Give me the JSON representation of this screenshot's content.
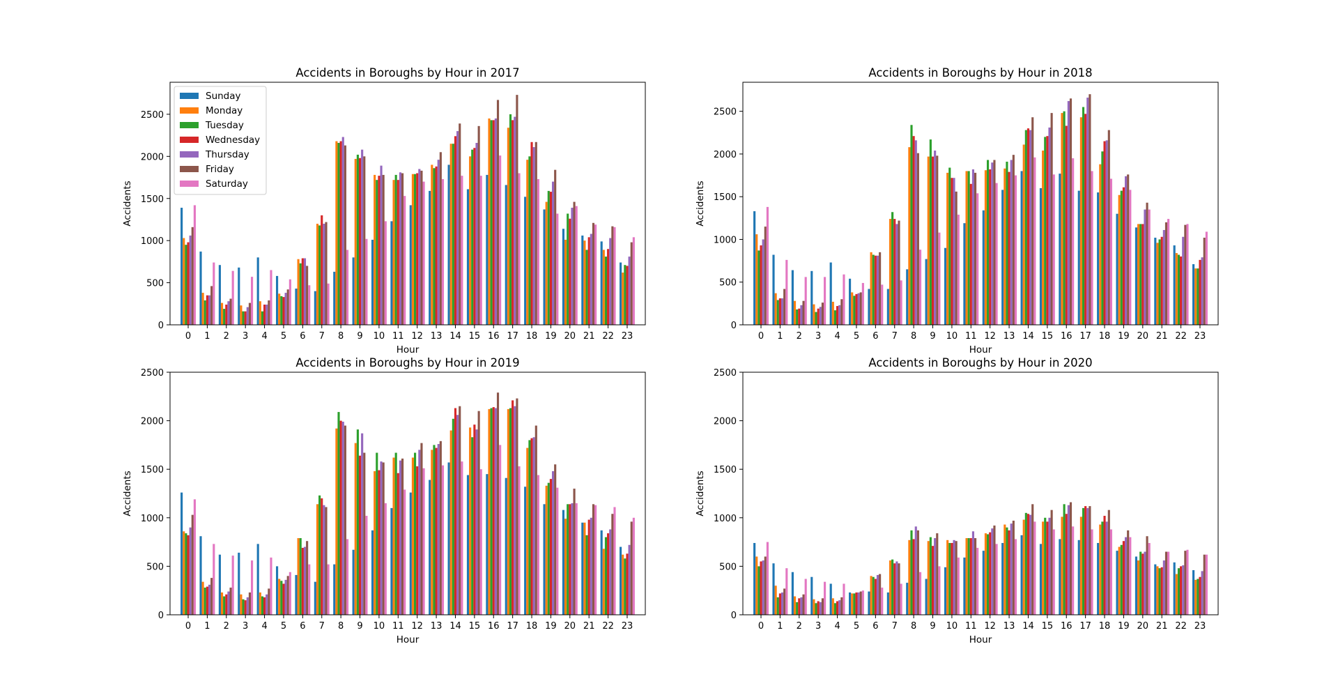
{
  "colors": {
    "Sunday": "#1f77b4",
    "Monday": "#ff7f0e",
    "Tuesday": "#2ca02c",
    "Wednesday": "#d62728",
    "Thursday": "#9467bd",
    "Friday": "#8c564b",
    "Saturday": "#e377c2"
  },
  "legend_location": "upper left of first chart",
  "chart_data": [
    {
      "type": "bar",
      "title": "Accidents in Boroughs by Hour in 2017",
      "xlabel": "Hour",
      "ylabel": "Accidents",
      "ylim": [
        0,
        2880
      ],
      "yticks": [
        0,
        500,
        1000,
        1500,
        2000,
        2500
      ],
      "categories": [
        "0",
        "1",
        "2",
        "3",
        "4",
        "5",
        "6",
        "7",
        "8",
        "9",
        "10",
        "11",
        "12",
        "13",
        "14",
        "15",
        "16",
        "17",
        "18",
        "19",
        "20",
        "21",
        "22",
        "23"
      ],
      "legend": true,
      "series": [
        {
          "name": "Sunday",
          "values": [
            1390,
            870,
            710,
            680,
            800,
            580,
            430,
            400,
            630,
            800,
            1010,
            1230,
            1420,
            1590,
            1900,
            1610,
            1780,
            1660,
            1520,
            1370,
            1140,
            1060,
            990,
            740
          ]
        },
        {
          "name": "Monday",
          "values": [
            1030,
            380,
            260,
            230,
            280,
            370,
            780,
            1200,
            2180,
            1970,
            1780,
            1720,
            1790,
            1900,
            2150,
            2000,
            2450,
            2340,
            1960,
            1460,
            1010,
            1000,
            890,
            620
          ]
        },
        {
          "name": "Tuesday",
          "values": [
            950,
            290,
            190,
            160,
            160,
            340,
            730,
            1180,
            2160,
            2020,
            1720,
            1780,
            1790,
            1860,
            2150,
            2080,
            2430,
            2500,
            2000,
            1590,
            1320,
            890,
            810,
            710
          ]
        },
        {
          "name": "Wednesday",
          "values": [
            980,
            350,
            240,
            160,
            240,
            330,
            790,
            1300,
            2180,
            1980,
            1770,
            1720,
            1800,
            1880,
            2240,
            2100,
            2430,
            2430,
            2170,
            1580,
            1260,
            1040,
            900,
            700
          ]
        },
        {
          "name": "Thursday",
          "values": [
            1060,
            350,
            280,
            210,
            240,
            380,
            790,
            1200,
            2230,
            2080,
            1890,
            1810,
            1850,
            1960,
            2300,
            2160,
            2450,
            2470,
            2110,
            1700,
            1390,
            1080,
            1030,
            810
          ]
        },
        {
          "name": "Friday",
          "values": [
            1160,
            460,
            310,
            260,
            290,
            420,
            700,
            1220,
            2130,
            2000,
            1780,
            1800,
            1830,
            2050,
            2390,
            2360,
            2670,
            2730,
            2170,
            1840,
            1460,
            1210,
            1170,
            980
          ]
        },
        {
          "name": "Saturday",
          "values": [
            1420,
            740,
            640,
            570,
            650,
            540,
            470,
            490,
            890,
            1020,
            1230,
            1530,
            1700,
            1730,
            1770,
            1770,
            2010,
            1800,
            1730,
            1320,
            1410,
            1190,
            1160,
            1040
          ]
        }
      ]
    },
    {
      "type": "bar",
      "title": "Accidents in Boroughs by Hour in 2018",
      "xlabel": "Hour",
      "ylabel": "Accidents",
      "ylim": [
        0,
        2840
      ],
      "yticks": [
        0,
        500,
        1000,
        1500,
        2000,
        2500
      ],
      "categories": [
        "0",
        "1",
        "2",
        "3",
        "4",
        "5",
        "6",
        "7",
        "8",
        "9",
        "10",
        "11",
        "12",
        "13",
        "14",
        "15",
        "16",
        "17",
        "18",
        "19",
        "20",
        "21",
        "22",
        "23"
      ],
      "legend": false,
      "series": [
        {
          "name": "Sunday",
          "values": [
            1330,
            820,
            640,
            630,
            730,
            540,
            420,
            420,
            650,
            770,
            900,
            1190,
            1340,
            1580,
            1800,
            1600,
            1770,
            1570,
            1550,
            1300,
            1140,
            1020,
            930,
            710
          ]
        },
        {
          "name": "Monday",
          "values": [
            1060,
            370,
            280,
            240,
            270,
            380,
            850,
            1240,
            2080,
            1970,
            1780,
            1800,
            1810,
            1830,
            2110,
            2040,
            2480,
            2430,
            1880,
            1520,
            1180,
            960,
            840,
            660
          ]
        },
        {
          "name": "Tuesday",
          "values": [
            870,
            290,
            180,
            150,
            170,
            340,
            820,
            1320,
            2340,
            2170,
            1840,
            1800,
            1930,
            1910,
            2280,
            2200,
            2500,
            2550,
            2030,
            1570,
            1180,
            1000,
            820,
            660
          ]
        },
        {
          "name": "Wednesday",
          "values": [
            930,
            310,
            190,
            190,
            220,
            360,
            810,
            1240,
            2210,
            1970,
            1720,
            1650,
            1820,
            1790,
            2300,
            2210,
            2330,
            2470,
            2150,
            1610,
            1180,
            1030,
            800,
            760
          ]
        },
        {
          "name": "Thursday",
          "values": [
            1000,
            310,
            230,
            210,
            230,
            370,
            810,
            1180,
            2160,
            2040,
            1720,
            1820,
            1900,
            1930,
            2280,
            2310,
            2620,
            2660,
            2160,
            1740,
            1350,
            1110,
            1030,
            790
          ]
        },
        {
          "name": "Friday",
          "values": [
            1150,
            420,
            280,
            260,
            300,
            380,
            850,
            1220,
            2010,
            1980,
            1560,
            1780,
            1930,
            1990,
            2430,
            2480,
            2650,
            2700,
            2280,
            1760,
            1430,
            1200,
            1170,
            1020
          ]
        },
        {
          "name": "Saturday",
          "values": [
            1380,
            760,
            560,
            560,
            590,
            490,
            470,
            520,
            880,
            1080,
            1290,
            1540,
            1660,
            1750,
            1960,
            1760,
            1950,
            1800,
            1710,
            1580,
            1350,
            1240,
            1180,
            1090
          ]
        }
      ]
    },
    {
      "type": "bar",
      "title": "Accidents in Boroughs by Hour in 2019",
      "xlabel": "Hour",
      "ylabel": "Accidents",
      "ylim": [
        0,
        2500
      ],
      "yticks": [
        0,
        500,
        1000,
        1500,
        2000,
        2500
      ],
      "categories": [
        "0",
        "1",
        "2",
        "3",
        "4",
        "5",
        "6",
        "7",
        "8",
        "9",
        "10",
        "11",
        "12",
        "13",
        "14",
        "15",
        "16",
        "17",
        "18",
        "19",
        "20",
        "21",
        "22",
        "23"
      ],
      "legend": false,
      "series": [
        {
          "name": "Sunday",
          "values": [
            1260,
            810,
            620,
            640,
            730,
            500,
            410,
            340,
            520,
            670,
            870,
            1100,
            1260,
            1390,
            1570,
            1440,
            1450,
            1410,
            1320,
            1140,
            1080,
            950,
            870,
            700
          ]
        },
        {
          "name": "Monday",
          "values": [
            860,
            340,
            230,
            210,
            230,
            370,
            790,
            1140,
            1920,
            1770,
            1480,
            1620,
            1620,
            1700,
            1900,
            1930,
            2120,
            2120,
            1720,
            1330,
            990,
            950,
            680,
            620
          ]
        },
        {
          "name": "Tuesday",
          "values": [
            840,
            280,
            190,
            160,
            190,
            350,
            790,
            1230,
            2090,
            1910,
            1670,
            1670,
            1670,
            1750,
            2020,
            1830,
            2130,
            2130,
            1800,
            1360,
            1140,
            820,
            800,
            580
          ]
        },
        {
          "name": "Wednesday",
          "values": [
            820,
            290,
            210,
            150,
            180,
            320,
            690,
            1200,
            2000,
            1640,
            1490,
            1460,
            1530,
            1720,
            2130,
            1960,
            2140,
            2210,
            1820,
            1400,
            1140,
            980,
            840,
            630
          ]
        },
        {
          "name": "Thursday",
          "values": [
            900,
            310,
            240,
            180,
            210,
            360,
            700,
            1130,
            1990,
            1870,
            1580,
            1590,
            1700,
            1760,
            2060,
            1910,
            2130,
            2150,
            1830,
            1480,
            1150,
            1000,
            880,
            720
          ]
        },
        {
          "name": "Friday",
          "values": [
            1030,
            380,
            280,
            230,
            270,
            400,
            760,
            1110,
            1950,
            1670,
            1570,
            1610,
            1770,
            1790,
            2150,
            2100,
            2290,
            2230,
            1950,
            1550,
            1300,
            1140,
            1040,
            960
          ]
        },
        {
          "name": "Saturday",
          "values": [
            1190,
            730,
            610,
            560,
            590,
            440,
            520,
            520,
            780,
            1020,
            1150,
            1290,
            1510,
            1540,
            1580,
            1500,
            1750,
            1530,
            1440,
            1310,
            1150,
            1130,
            1110,
            1000
          ]
        }
      ]
    },
    {
      "type": "bar",
      "title": "Accidents in Boroughs by Hour in 2020",
      "xlabel": "Hour",
      "ylabel": "Accidents",
      "ylim": [
        0,
        2500
      ],
      "yticks": [
        0,
        500,
        1000,
        1500,
        2000,
        2500
      ],
      "categories": [
        "0",
        "1",
        "2",
        "3",
        "4",
        "5",
        "6",
        "7",
        "8",
        "9",
        "10",
        "11",
        "12",
        "13",
        "14",
        "15",
        "16",
        "17",
        "18",
        "19",
        "20",
        "21",
        "22",
        "23"
      ],
      "legend": false,
      "series": [
        {
          "name": "Sunday",
          "values": [
            740,
            530,
            440,
            390,
            320,
            230,
            240,
            230,
            330,
            370,
            490,
            590,
            660,
            740,
            820,
            730,
            780,
            770,
            740,
            660,
            600,
            520,
            540,
            460
          ]
        },
        {
          "name": "Monday",
          "values": [
            600,
            300,
            190,
            160,
            170,
            220,
            400,
            560,
            770,
            760,
            770,
            790,
            840,
            930,
            980,
            960,
            1010,
            1010,
            930,
            700,
            560,
            500,
            420,
            360
          ]
        },
        {
          "name": "Tuesday",
          "values": [
            500,
            180,
            130,
            120,
            120,
            220,
            390,
            570,
            870,
            800,
            740,
            790,
            830,
            900,
            1050,
            1000,
            1140,
            1100,
            960,
            720,
            650,
            480,
            480,
            370
          ]
        },
        {
          "name": "Wednesday",
          "values": [
            550,
            220,
            170,
            140,
            140,
            230,
            370,
            530,
            780,
            710,
            740,
            790,
            850,
            870,
            1040,
            960,
            1040,
            1120,
            1020,
            760,
            630,
            490,
            500,
            390
          ]
        },
        {
          "name": "Thursday",
          "values": [
            560,
            230,
            180,
            130,
            150,
            230,
            410,
            550,
            910,
            790,
            770,
            860,
            890,
            940,
            1030,
            1000,
            1130,
            1100,
            960,
            800,
            650,
            560,
            510,
            450
          ]
        },
        {
          "name": "Friday",
          "values": [
            600,
            270,
            210,
            170,
            180,
            240,
            420,
            530,
            870,
            840,
            760,
            790,
            920,
            970,
            1140,
            1080,
            1160,
            1120,
            1080,
            870,
            810,
            650,
            660,
            620
          ]
        },
        {
          "name": "Saturday",
          "values": [
            750,
            480,
            370,
            340,
            320,
            250,
            280,
            320,
            440,
            500,
            590,
            690,
            730,
            780,
            960,
            880,
            910,
            880,
            880,
            800,
            740,
            650,
            670,
            620
          ]
        }
      ]
    }
  ]
}
